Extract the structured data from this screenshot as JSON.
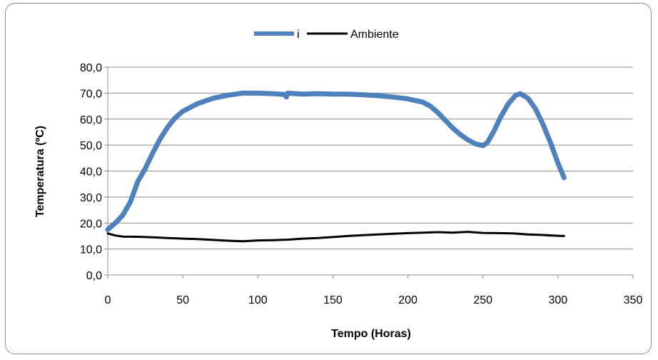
{
  "chart_data": {
    "type": "line",
    "title": "",
    "xlabel": "Tempo (Horas)",
    "ylabel": "Temperatura (ºC)",
    "xlim": [
      0,
      350
    ],
    "ylim": [
      0,
      80
    ],
    "x_ticks": [
      "0",
      "50",
      "100",
      "150",
      "200",
      "250",
      "300",
      "350"
    ],
    "y_ticks": [
      "0,0",
      "10,0",
      "20,0",
      "30,0",
      "40,0",
      "50,0",
      "60,0",
      "70,0",
      "80,0"
    ],
    "grid": "horizontal",
    "legend_position": "top",
    "series": [
      {
        "name": "i",
        "color": "#4f81bd",
        "points": [
          [
            0,
            17.5
          ],
          [
            5,
            20
          ],
          [
            10,
            23
          ],
          [
            15,
            28
          ],
          [
            20,
            36
          ],
          [
            25,
            41
          ],
          [
            30,
            47
          ],
          [
            35,
            52.5
          ],
          [
            40,
            57
          ],
          [
            45,
            60.5
          ],
          [
            50,
            63
          ],
          [
            60,
            66
          ],
          [
            70,
            68
          ],
          [
            80,
            69.2
          ],
          [
            90,
            70
          ],
          [
            100,
            70
          ],
          [
            110,
            69.8
          ],
          [
            118,
            69.5
          ],
          [
            119,
            68.5
          ],
          [
            120,
            70
          ],
          [
            130,
            69.6
          ],
          [
            140,
            69.8
          ],
          [
            150,
            69.6
          ],
          [
            160,
            69.6
          ],
          [
            170,
            69.4
          ],
          [
            180,
            69
          ],
          [
            190,
            68.5
          ],
          [
            200,
            67.8
          ],
          [
            210,
            66.5
          ],
          [
            215,
            65
          ],
          [
            220,
            62.5
          ],
          [
            225,
            59.5
          ],
          [
            230,
            56.5
          ],
          [
            235,
            54
          ],
          [
            240,
            52
          ],
          [
            245,
            50.5
          ],
          [
            250,
            49.8
          ],
          [
            253,
            51
          ],
          [
            257,
            55
          ],
          [
            262,
            61
          ],
          [
            267,
            66
          ],
          [
            272,
            69.3
          ],
          [
            275,
            69.8
          ],
          [
            280,
            68
          ],
          [
            285,
            64
          ],
          [
            290,
            58
          ],
          [
            295,
            51
          ],
          [
            300,
            43
          ],
          [
            304,
            37.5
          ]
        ]
      },
      {
        "name": "Ambiente",
        "color": "#000000",
        "points": [
          [
            0,
            16
          ],
          [
            5,
            15.2
          ],
          [
            10,
            14.8
          ],
          [
            20,
            14.7
          ],
          [
            30,
            14.5
          ],
          [
            40,
            14.2
          ],
          [
            50,
            14
          ],
          [
            60,
            13.8
          ],
          [
            70,
            13.5
          ],
          [
            80,
            13.2
          ],
          [
            90,
            13
          ],
          [
            100,
            13.3
          ],
          [
            110,
            13.4
          ],
          [
            120,
            13.6
          ],
          [
            130,
            14
          ],
          [
            140,
            14.2
          ],
          [
            150,
            14.6
          ],
          [
            160,
            15
          ],
          [
            170,
            15.3
          ],
          [
            180,
            15.6
          ],
          [
            190,
            15.9
          ],
          [
            200,
            16.1
          ],
          [
            210,
            16.3
          ],
          [
            220,
            16.5
          ],
          [
            230,
            16.3
          ],
          [
            240,
            16.6
          ],
          [
            250,
            16.2
          ],
          [
            260,
            16.1
          ],
          [
            270,
            16
          ],
          [
            280,
            15.6
          ],
          [
            290,
            15.4
          ],
          [
            300,
            15.1
          ],
          [
            304,
            15
          ]
        ]
      }
    ]
  }
}
